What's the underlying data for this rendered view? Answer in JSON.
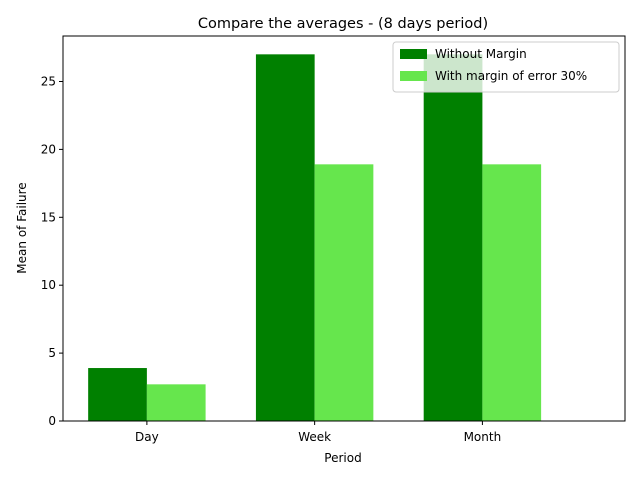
{
  "chart_data": {
    "type": "bar",
    "title": "Compare the averages - (8 days period)",
    "xlabel": "Period",
    "ylabel": "Mean of Failure",
    "categories": [
      "Day",
      "Week",
      "Month"
    ],
    "series": [
      {
        "name": "Without Margin",
        "values": [
          3.9,
          27.0,
          27.0
        ],
        "color": "#008000"
      },
      {
        "name": "With margin of error 30%",
        "values": [
          2.7,
          18.9,
          18.9
        ],
        "color": "#66e64d"
      }
    ],
    "ylim": [
      0,
      28.35
    ],
    "yticks": [
      0,
      5,
      10,
      15,
      20,
      25
    ],
    "grid": false,
    "legend": "top-right"
  }
}
